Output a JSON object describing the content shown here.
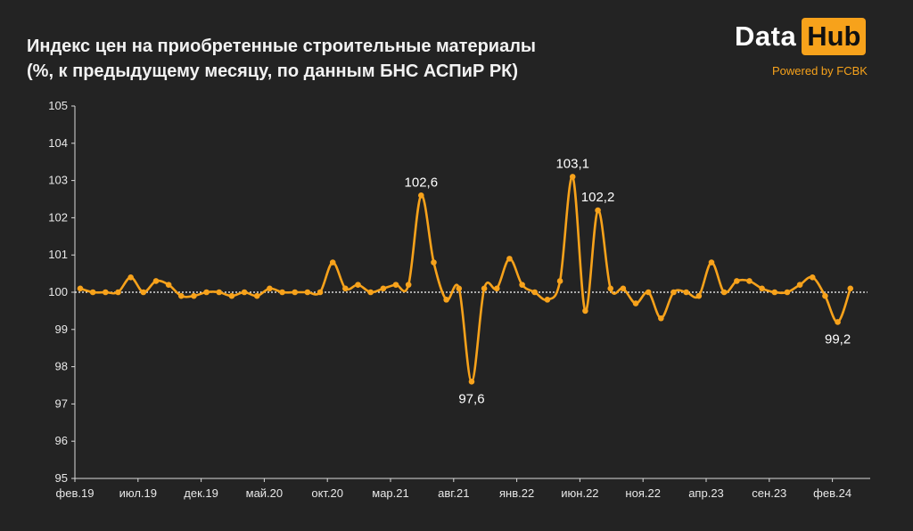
{
  "header": {
    "title_line1": "Индекс цен на приобретенные строительные материалы",
    "title_line2": "(%, к предыдущему месяцу, по данным БНС АСПиР РК)"
  },
  "logo": {
    "word1": "Data",
    "word2": "Hub",
    "powered": "Powered by FCBK"
  },
  "colors": {
    "background": "#232323",
    "series": "#f7a21b",
    "text": "#ffffff",
    "reference_line": "#ffffff"
  },
  "chart_data": {
    "type": "line",
    "title": "Индекс цен на приобретенные строительные материалы (%, к предыдущему месяцу, по данным БНС АСПиР РК)",
    "xlabel": "",
    "ylabel": "",
    "ylim": [
      95,
      105
    ],
    "yticks": [
      95,
      96,
      97,
      98,
      99,
      100,
      101,
      102,
      103,
      104,
      105
    ],
    "xtick_labels": [
      "фев.19",
      "июл.19",
      "дек.19",
      "май.20",
      "окт.20",
      "мар.21",
      "авг.21",
      "янв.22",
      "июн.22",
      "ноя.22",
      "апр.23",
      "сен.23",
      "фев.24"
    ],
    "xtick_every": 5,
    "reference_line": 100,
    "grid": false,
    "legend": "none",
    "values": [
      100.1,
      100.0,
      100.0,
      100.0,
      100.4,
      100.0,
      100.3,
      100.2,
      99.9,
      99.9,
      100.0,
      100.0,
      99.9,
      100.0,
      99.9,
      100.1,
      100.0,
      100.0,
      100.0,
      100.0,
      100.8,
      100.1,
      100.2,
      100.0,
      100.1,
      100.2,
      100.2,
      102.6,
      100.8,
      99.8,
      100.1,
      97.6,
      100.1,
      100.1,
      100.9,
      100.2,
      100.0,
      99.8,
      100.3,
      103.1,
      99.5,
      102.2,
      100.1,
      100.1,
      99.7,
      100.0,
      99.3,
      100.0,
      100.0,
      99.9,
      100.8,
      100.0,
      100.3,
      100.3,
      100.1,
      100.0,
      100.0,
      100.2,
      100.4,
      99.9,
      99.2,
      100.1
    ],
    "annotations": [
      {
        "index": 27,
        "text": "102,6",
        "position": "above"
      },
      {
        "index": 31,
        "text": "97,6",
        "position": "below"
      },
      {
        "index": 39,
        "text": "103,1",
        "position": "above"
      },
      {
        "index": 41,
        "text": "102,2",
        "position": "above"
      },
      {
        "index": 60,
        "text": "99,2",
        "position": "below"
      }
    ]
  }
}
